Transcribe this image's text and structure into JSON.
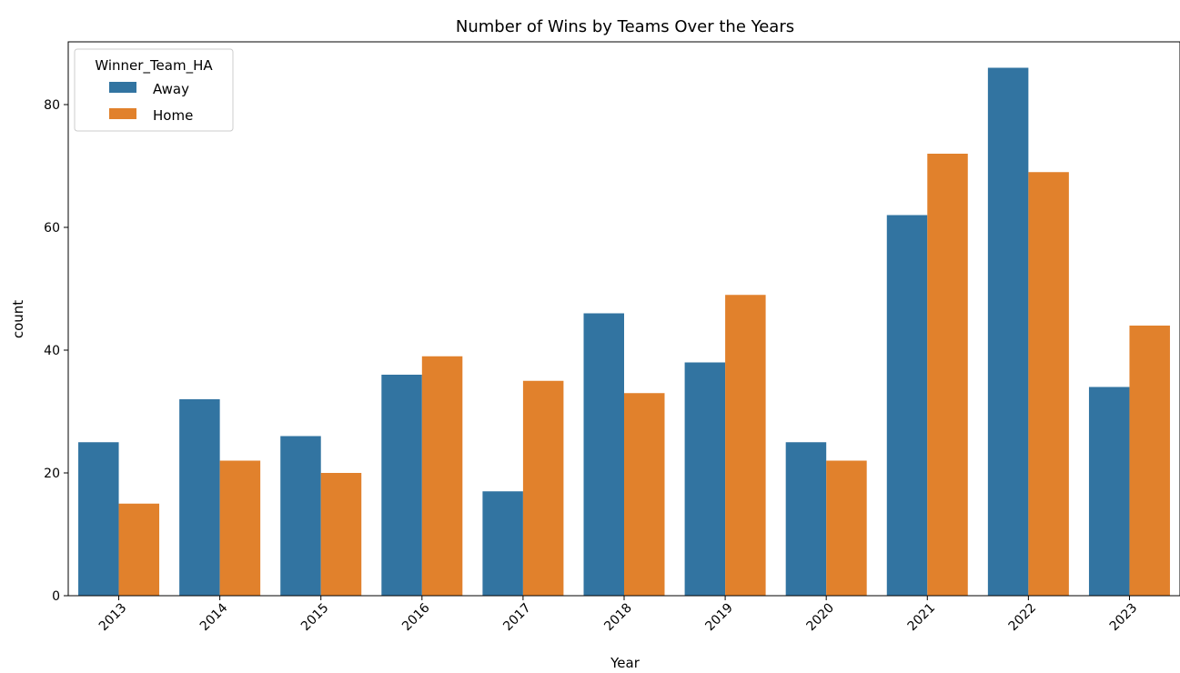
{
  "chart_data": {
    "type": "bar",
    "title": "Number of Wins by Teams Over the Years",
    "xlabel": "Year",
    "ylabel": "count",
    "categories": [
      "2013",
      "2014",
      "2015",
      "2016",
      "2017",
      "2018",
      "2019",
      "2020",
      "2021",
      "2022",
      "2023"
    ],
    "series": [
      {
        "name": "Away",
        "color": "#3274a1",
        "values": [
          25,
          32,
          26,
          36,
          17,
          46,
          38,
          25,
          62,
          86,
          34
        ]
      },
      {
        "name": "Home",
        "color": "#e1812c",
        "values": [
          15,
          22,
          20,
          39,
          35,
          33,
          49,
          22,
          72,
          69,
          44
        ]
      }
    ],
    "ylim": [
      0,
      90
    ],
    "yticks": [
      0,
      20,
      40,
      60,
      80
    ],
    "legend": {
      "title": "Winner_Team_HA",
      "position": "top-left"
    },
    "grid": false
  }
}
